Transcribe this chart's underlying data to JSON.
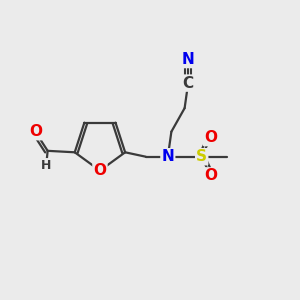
{
  "background_color": "#ebebeb",
  "atom_colors": {
    "C": "#3a3a3a",
    "N": "#0000ee",
    "O": "#ee0000",
    "S": "#cccc00",
    "H": "#3a3a3a"
  },
  "bond_color": "#3a3a3a",
  "bond_width": 1.6,
  "font_size_atoms": 11,
  "font_size_small": 9,
  "xlim": [
    0,
    10
  ],
  "ylim": [
    0,
    10
  ]
}
